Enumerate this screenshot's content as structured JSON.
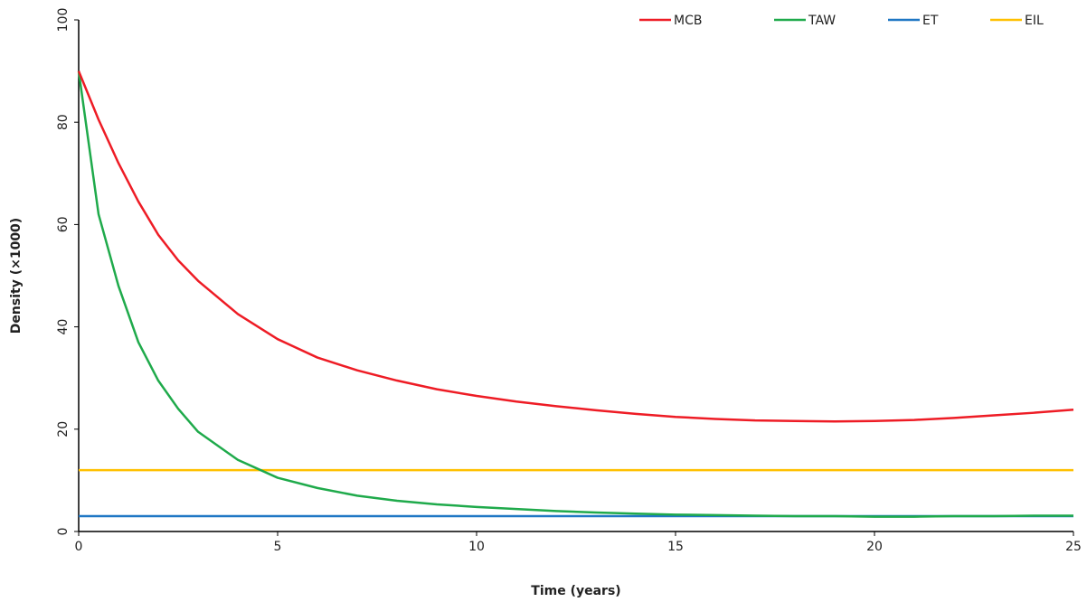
{
  "chart_data": {
    "type": "line",
    "x_label": "Time (years)",
    "y_label": "Density (×1000)",
    "x": [
      0,
      0.5,
      1,
      1.5,
      2,
      2.5,
      3,
      4,
      5,
      6,
      7,
      8,
      9,
      10,
      11,
      12,
      13,
      14,
      15,
      16,
      17,
      18,
      19,
      20,
      21,
      22,
      23,
      24,
      25
    ],
    "series": [
      {
        "name": "MCB",
        "color": "#ee1c25",
        "values": [
          90,
          80.5,
          72,
          64.5,
          58,
          53,
          49,
          42.5,
          37.6,
          34,
          31.5,
          29.5,
          27.8,
          26.5,
          25.4,
          24.5,
          23.7,
          23,
          22.4,
          22,
          21.7,
          21.6,
          21.5,
          21.6,
          21.8,
          22.2,
          22.7,
          23.2,
          23.8
        ]
      },
      {
        "name": "TAW",
        "color": "#1faa4b",
        "values": [
          90,
          62,
          48,
          37,
          29.5,
          24,
          19.5,
          14,
          10.5,
          8.5,
          7,
          6,
          5.3,
          4.8,
          4.4,
          4,
          3.7,
          3.5,
          3.3,
          3.2,
          3.1,
          3.0,
          3.0,
          2.9,
          2.9,
          3.0,
          3.0,
          3.1,
          3.1
        ]
      },
      {
        "name": "ET",
        "color": "#1f77c4",
        "values": [
          3,
          3,
          3,
          3,
          3,
          3,
          3,
          3,
          3,
          3,
          3,
          3,
          3,
          3,
          3,
          3,
          3,
          3,
          3,
          3,
          3,
          3,
          3,
          3,
          3,
          3,
          3,
          3,
          3
        ]
      },
      {
        "name": "EIL",
        "color": "#ffc000",
        "values": [
          12,
          12,
          12,
          12,
          12,
          12,
          12,
          12,
          12,
          12,
          12,
          12,
          12,
          12,
          12,
          12,
          12,
          12,
          12,
          12,
          12,
          12,
          12,
          12,
          12,
          12,
          12,
          12,
          12
        ]
      }
    ],
    "xlim": [
      0,
      25
    ],
    "xticks": [
      0,
      5,
      10,
      15,
      20,
      25
    ],
    "ylim": [
      0,
      100
    ],
    "yticks": [
      0,
      20,
      40,
      60,
      80,
      100
    ],
    "grid": false,
    "legend": "top-right"
  }
}
